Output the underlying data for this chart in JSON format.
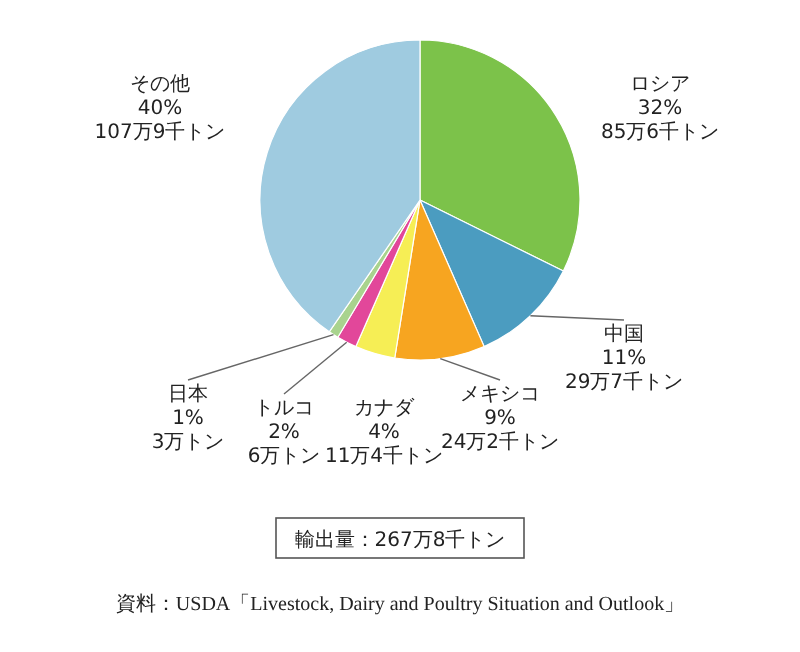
{
  "chart_data": {
    "type": "pie",
    "categories": [
      "ロシア",
      "中国",
      "メキシコ",
      "カナダ",
      "トルコ",
      "日本",
      "その他"
    ],
    "values": [
      32,
      11,
      9,
      4,
      2,
      1,
      40
    ],
    "value_labels": [
      "32%\n85万6千トン",
      "11%\n29万7千トン",
      "9%\n24万2千トン",
      "4%\n11万4千トン",
      "2%\n6万トン",
      "1%\n3万トン",
      "40%\n107万9千トン"
    ],
    "colors": [
      "#7cc24a",
      "#4b9cc0",
      "#f7a520",
      "#f6ee55",
      "#e2479a",
      "#a9d38e",
      "#9fcbe0"
    ],
    "annotations": [
      "輸出量：267万8千トン",
      "資料：USDA「Livestock, Dairy and Poultry Situation and Outlook」"
    ]
  }
}
